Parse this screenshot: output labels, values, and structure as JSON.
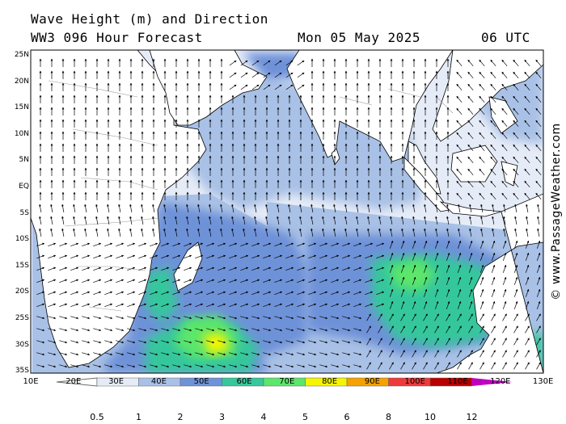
{
  "header": {
    "title": "Wave Height (m) and Direction",
    "model": "WW3 096 Hour Forecast",
    "date": "Mon 05 May 2025",
    "time": "06 UTC"
  },
  "credit": "© www.PassageWeather.com",
  "map": {
    "lat_labels": [
      "25N",
      "20N",
      "15N",
      "10N",
      "5N",
      "EQ",
      "5S",
      "10S",
      "15S",
      "20S",
      "25S",
      "30S",
      "35S"
    ],
    "lon_labels": [
      "10E",
      "20E",
      "30E",
      "40E",
      "50E",
      "60E",
      "70E",
      "80E",
      "90E",
      "100E",
      "110E",
      "120E",
      "130E"
    ],
    "colors": {
      "land": "#ffffff",
      "coast": "#000000",
      "borders": "#9a9a9a"
    }
  },
  "legend": {
    "ticks": [
      "0.5",
      "1",
      "2",
      "3",
      "4",
      "5",
      "6",
      "8",
      "10",
      "12"
    ],
    "colors": [
      "#e6ecf7",
      "#a9c1e6",
      "#6e92d8",
      "#36c79c",
      "#5ce66a",
      "#f5f500",
      "#f5a100",
      "#ee3a3a",
      "#b80000",
      "#c000c0"
    ]
  }
}
